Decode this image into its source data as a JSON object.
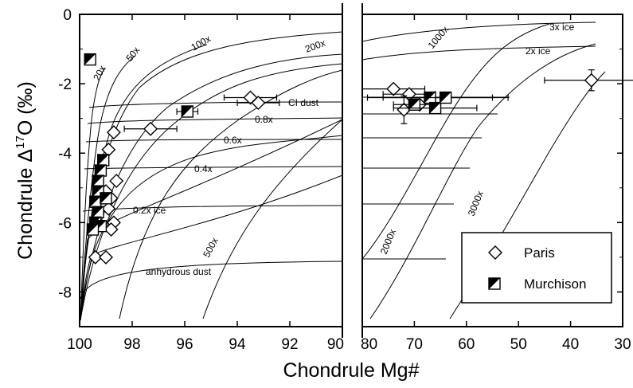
{
  "chart_data": {
    "type": "scatter",
    "xlabel": "Chondrule Mg#",
    "ylabel": "Chondrule Δ",
    "ylabel_sup": "17",
    "ylabel_tail": "O (‰)",
    "ylim": [
      -9,
      0
    ],
    "yticks": [
      0,
      -2,
      -4,
      -6,
      -8
    ],
    "ytick_labels": [
      "0",
      "-2",
      "-4",
      "-6",
      "-8"
    ],
    "panels": [
      {
        "xlim": [
          100,
          90
        ],
        "xticks": [
          100,
          98,
          96,
          94,
          92,
          90
        ],
        "xtick_labels": [
          "100",
          "98",
          "96",
          "94",
          "92",
          "90"
        ]
      },
      {
        "xlim": [
          80,
          30
        ],
        "xticks": [
          80,
          70,
          60,
          50,
          40,
          30
        ],
        "xtick_labels": [
          "80",
          "70",
          "60",
          "50",
          "40",
          "30"
        ]
      }
    ],
    "model_curves": {
      "dust_enrichment_labels": [
        "20x",
        "50x",
        "100x",
        "200x",
        "500x",
        "1000x",
        "2000x",
        "3000x"
      ],
      "composition_labels": [
        "CI dust",
        "0.8x",
        "0.6x",
        "0.4x",
        "0.2x ice",
        "anhydrous dust",
        "3x ice",
        "2x ice"
      ]
    },
    "legend": {
      "position": "bottom-right",
      "entries": [
        "Paris",
        "Murchison"
      ]
    },
    "series": [
      {
        "name": "Paris",
        "marker": "open-diamond",
        "points": [
          {
            "x": 93.5,
            "y": -2.4,
            "xerr": 1.0
          },
          {
            "x": 93.2,
            "y": -2.55,
            "xerr": 0.8
          },
          {
            "x": 97.3,
            "y": -3.3,
            "xerr": 1.0
          },
          {
            "x": 98.7,
            "y": -3.4
          },
          {
            "x": 98.9,
            "y": -3.9
          },
          {
            "x": 98.6,
            "y": -4.8
          },
          {
            "x": 98.8,
            "y": -5.3
          },
          {
            "x": 98.9,
            "y": -5.6
          },
          {
            "x": 98.7,
            "y": -6.0
          },
          {
            "x": 98.8,
            "y": -6.2
          },
          {
            "x": 99.0,
            "y": -5.1
          },
          {
            "x": 99.4,
            "y": -7.0
          },
          {
            "x": 99.0,
            "y": -7.0
          },
          {
            "x": 74,
            "y": -2.15,
            "xerr": 6
          },
          {
            "x": 71,
            "y": -2.3,
            "xerr": 5
          },
          {
            "x": 72,
            "y": -2.75,
            "yerr": 0.4
          },
          {
            "x": 69,
            "y": -2.6
          },
          {
            "x": 36,
            "y": -1.9,
            "xerr": 9,
            "yerr": 0.3
          }
        ]
      },
      {
        "name": "Murchison",
        "marker": "half-filled-square",
        "points": [
          {
            "x": 99.6,
            "y": -1.3
          },
          {
            "x": 95.9,
            "y": -2.8,
            "xerr": 0.4
          },
          {
            "x": 99.1,
            "y": -4.2
          },
          {
            "x": 99.2,
            "y": -4.5
          },
          {
            "x": 99.3,
            "y": -4.8
          },
          {
            "x": 99.3,
            "y": -5.1
          },
          {
            "x": 99.4,
            "y": -5.4
          },
          {
            "x": 99.3,
            "y": -5.7
          },
          {
            "x": 99.4,
            "y": -6.0
          },
          {
            "x": 99.2,
            "y": -6.1
          },
          {
            "x": 99.5,
            "y": -6.2
          },
          {
            "x": 99.0,
            "y": -5.3
          },
          {
            "x": 70,
            "y": -2.6,
            "xerr": 4
          },
          {
            "x": 67,
            "y": -2.4,
            "xerr": 12
          },
          {
            "x": 66,
            "y": -2.7,
            "xerr": 8
          },
          {
            "x": 64,
            "y": -2.4,
            "xerr": 12
          }
        ]
      }
    ]
  }
}
